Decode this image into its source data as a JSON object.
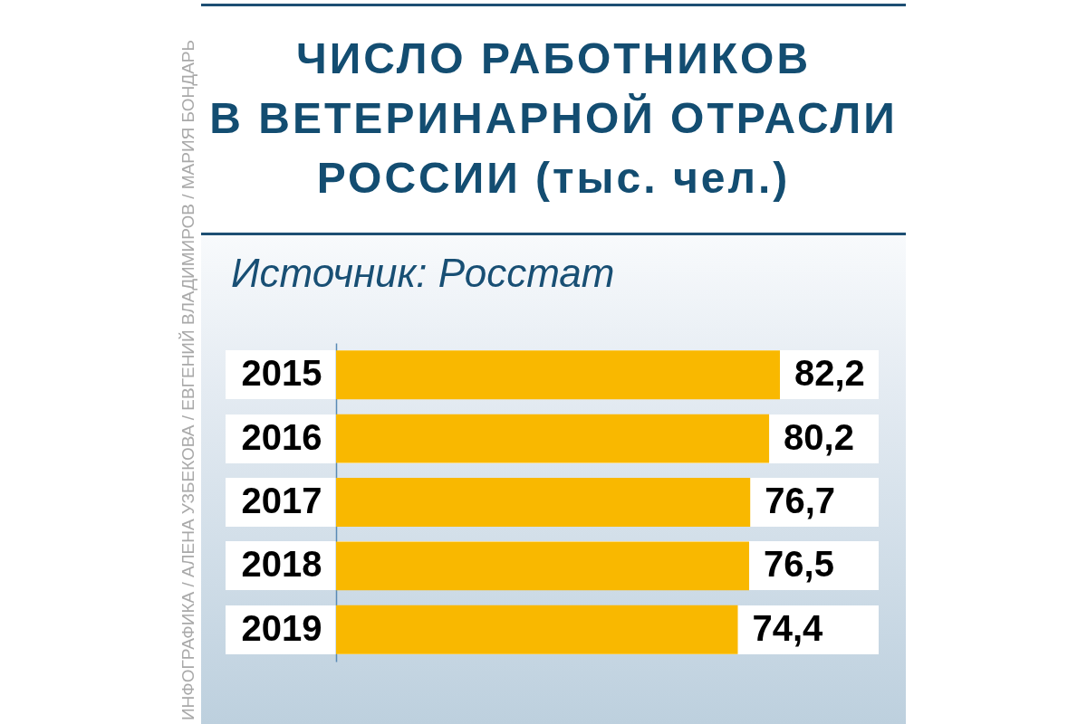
{
  "chart_data": {
    "type": "bar",
    "orientation": "horizontal",
    "title": "ЧИСЛО РАБОТНИКОВ\nВ ВЕТЕРИНАРНОЙ ОТРАСЛИ\nРОССИИ (тыс. чел.)",
    "annotations": [
      "Источник: Росстат",
      "ИНФОГРАФИКА / АЛЕНА УЗБЕКОВА / ЕВГЕНИЙ ВЛАДИМИРОВ / МАРИЯ БОНДАРЬ"
    ],
    "categories": [
      "2015",
      "2016",
      "2017",
      "2018",
      "2019"
    ],
    "values": [
      82.2,
      80.2,
      76.7,
      76.5,
      74.4
    ],
    "color": "#f9b800",
    "value_labels": [
      "82,2",
      "80,2",
      "76,7",
      "76,5",
      "74,4"
    ]
  }
}
